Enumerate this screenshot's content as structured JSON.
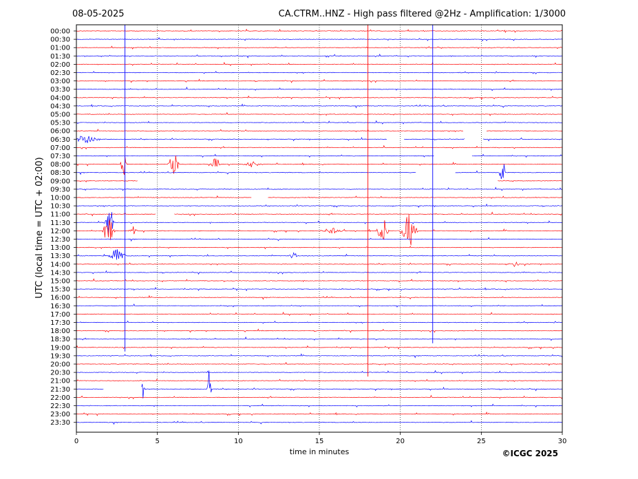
{
  "chart_data": {
    "type": "line",
    "title_left": "08-05-2025",
    "title_right": "CA.CTRM..HNZ - High pass filtered @2Hz - Amplification: 1/3000",
    "xlabel": "time in minutes",
    "ylabel": "UTC (local time = UTC + 02:00)",
    "xlim": [
      0,
      30
    ],
    "x_ticks": [
      "0",
      "5",
      "10",
      "15",
      "20",
      "25",
      "30"
    ],
    "x_tick_values": [
      0,
      5,
      10,
      15,
      20,
      25,
      30
    ],
    "grid": "vertical dotted at every 5 minutes",
    "row_colors": [
      "#ff0000",
      "#0000ff"
    ],
    "rows": [
      "00:00",
      "00:30",
      "01:00",
      "01:30",
      "02:00",
      "02:30",
      "03:00",
      "03:30",
      "04:00",
      "04:30",
      "05:00",
      "05:30",
      "06:00",
      "06:30",
      "07:00",
      "07:30",
      "08:00",
      "08:30",
      "09:00",
      "09:30",
      "10:00",
      "10:30",
      "11:00",
      "11:30",
      "12:00",
      "12:30",
      "13:00",
      "13:30",
      "14:00",
      "14:30",
      "15:00",
      "15:30",
      "16:00",
      "16:30",
      "17:00",
      "17:30",
      "18:00",
      "18:30",
      "19:00",
      "19:30",
      "20:00",
      "20:30",
      "21:00",
      "21:30",
      "22:00",
      "22:30",
      "23:00",
      "23:30"
    ],
    "vertical_spikes": [
      {
        "minute": 3.0,
        "from_row": 0,
        "to_row": 38
      },
      {
        "minute": 18.0,
        "from_row": 0,
        "to_row": 41
      },
      {
        "minute": 22.0,
        "from_row": 0,
        "to_row": 37
      }
    ],
    "events": [
      {
        "row": 13,
        "minute": 0.6,
        "amp": 0.5,
        "width": 1.0
      },
      {
        "row": 16,
        "minute": 2.9,
        "amp": 1.8,
        "width": 0.2
      },
      {
        "row": 16,
        "minute": 6.0,
        "amp": 1.3,
        "width": 0.4
      },
      {
        "row": 16,
        "minute": 8.6,
        "amp": 0.8,
        "width": 0.3
      },
      {
        "row": 16,
        "minute": 10.8,
        "amp": 0.3,
        "width": 0.6
      },
      {
        "row": 17,
        "minute": 26.3,
        "amp": 1.8,
        "width": 0.2
      },
      {
        "row": 23,
        "minute": 2.0,
        "amp": 2.4,
        "width": 0.3
      },
      {
        "row": 24,
        "minute": 2.0,
        "amp": 1.6,
        "width": 0.4
      },
      {
        "row": 24,
        "minute": 3.5,
        "amp": 0.6,
        "width": 0.3
      },
      {
        "row": 24,
        "minute": 15.8,
        "amp": 0.3,
        "width": 0.8
      },
      {
        "row": 24,
        "minute": 18.9,
        "amp": 1.4,
        "width": 0.4
      },
      {
        "row": 24,
        "minute": 20.5,
        "amp": 1.8,
        "width": 0.6
      },
      {
        "row": 27,
        "minute": 2.5,
        "amp": 0.9,
        "width": 0.6
      },
      {
        "row": 27,
        "minute": 13.4,
        "amp": 0.4,
        "width": 0.3
      },
      {
        "row": 28,
        "minute": 27.0,
        "amp": 0.5,
        "width": 0.4
      },
      {
        "row": 43,
        "minute": 4.1,
        "amp": 2.0,
        "width": 0.15
      },
      {
        "row": 43,
        "minute": 8.2,
        "amp": 2.0,
        "width": 0.15
      }
    ],
    "gaps": [
      {
        "row": 12,
        "from": 23.9,
        "to": 25.3
      },
      {
        "row": 13,
        "from": 19.2,
        "to": 20.2
      },
      {
        "row": 13,
        "from": 24.0,
        "to": 25.1
      },
      {
        "row": 15,
        "from": 22.1,
        "to": 24.4
      },
      {
        "row": 17,
        "from": 21.0,
        "to": 23.4
      },
      {
        "row": 18,
        "from": 3.8,
        "to": 26.0
      },
      {
        "row": 20,
        "from": 10.8,
        "to": 11.8
      },
      {
        "row": 22,
        "from": 4.9,
        "to": 6.0
      },
      {
        "row": 43,
        "from": 1.7,
        "to": 4.0
      }
    ]
  },
  "copyright": "©ICGC 2025"
}
